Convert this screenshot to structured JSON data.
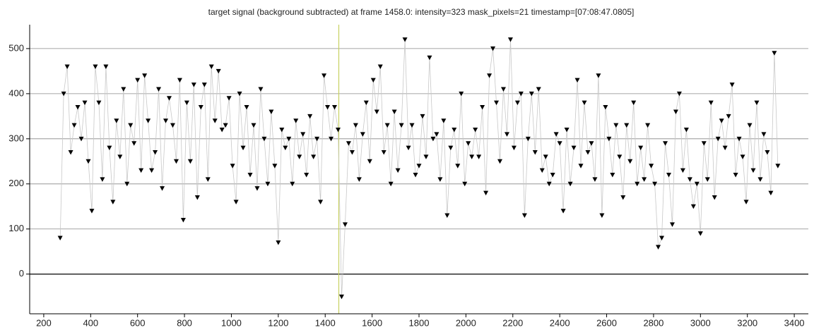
{
  "chart_data": {
    "type": "line",
    "title": "target signal (background subtracted) at frame 1458.0: intensity=323 mask_pixels=21 timestamp=[07:08:47.0805]",
    "x": [
      270,
      285,
      300,
      315,
      330,
      345,
      360,
      375,
      390,
      405,
      420,
      435,
      450,
      465,
      480,
      495,
      510,
      525,
      540,
      555,
      570,
      585,
      600,
      615,
      630,
      645,
      660,
      675,
      690,
      705,
      720,
      735,
      750,
      765,
      780,
      795,
      810,
      825,
      840,
      855,
      870,
      885,
      900,
      915,
      930,
      945,
      960,
      975,
      990,
      1005,
      1020,
      1035,
      1050,
      1065,
      1080,
      1095,
      1110,
      1125,
      1140,
      1155,
      1170,
      1185,
      1200,
      1215,
      1230,
      1245,
      1260,
      1275,
      1290,
      1305,
      1320,
      1335,
      1350,
      1365,
      1380,
      1395,
      1410,
      1425,
      1440,
      1455,
      1470,
      1485,
      1500,
      1515,
      1530,
      1545,
      1560,
      1575,
      1590,
      1605,
      1620,
      1635,
      1650,
      1665,
      1680,
      1695,
      1710,
      1725,
      1740,
      1755,
      1770,
      1785,
      1800,
      1815,
      1830,
      1845,
      1860,
      1875,
      1890,
      1905,
      1920,
      1935,
      1950,
      1965,
      1980,
      1995,
      2010,
      2025,
      2040,
      2055,
      2070,
      2085,
      2100,
      2115,
      2130,
      2145,
      2160,
      2175,
      2190,
      2205,
      2220,
      2235,
      2250,
      2265,
      2280,
      2295,
      2310,
      2325,
      2340,
      2355,
      2370,
      2385,
      2400,
      2415,
      2430,
      2445,
      2460,
      2475,
      2490,
      2505,
      2520,
      2535,
      2550,
      2565,
      2580,
      2595,
      2610,
      2625,
      2640,
      2655,
      2670,
      2685,
      2700,
      2715,
      2730,
      2745,
      2760,
      2775,
      2790,
      2805,
      2820,
      2835,
      2850,
      2865,
      2880,
      2895,
      2910,
      2925,
      2940,
      2955,
      2970,
      2985,
      3000,
      3015,
      3030,
      3045,
      3060,
      3075,
      3090,
      3105,
      3120,
      3135,
      3150,
      3165,
      3180,
      3195,
      3210,
      3225,
      3240,
      3255,
      3270,
      3285,
      3300,
      3315,
      3330
    ],
    "series": [
      {
        "color": "#000000",
        "line_color": "#c8c8c8",
        "values": [
          80,
          400,
          460,
          270,
          330,
          370,
          300,
          380,
          250,
          140,
          460,
          380,
          210,
          460,
          280,
          160,
          340,
          260,
          410,
          200,
          330,
          290,
          430,
          230,
          440,
          340,
          230,
          270,
          410,
          190,
          340,
          390,
          330,
          250,
          430,
          120,
          380,
          250,
          420,
          170,
          370,
          420,
          210,
          460,
          340,
          450,
          320,
          330,
          390,
          240,
          160,
          400,
          280,
          370,
          220,
          330,
          190,
          410,
          300,
          200,
          360,
          240,
          70,
          320,
          280,
          300,
          200,
          340,
          260,
          310,
          220,
          350,
          260,
          300,
          160,
          440,
          370,
          300,
          370,
          320,
          -50,
          110,
          290,
          270,
          330,
          210,
          310,
          380,
          250,
          430,
          360,
          460,
          270,
          330,
          200,
          360,
          230,
          330,
          520,
          280,
          330,
          220,
          240,
          350,
          260,
          480,
          300,
          310,
          210,
          340,
          130,
          280,
          320,
          240,
          400,
          200,
          290,
          260,
          320,
          260,
          370,
          180,
          440,
          500,
          380,
          250,
          410,
          310,
          520,
          280,
          380,
          400,
          130,
          300,
          400,
          270,
          410,
          230,
          260,
          200,
          220,
          310,
          290,
          140,
          320,
          200,
          280,
          430,
          240,
          380,
          270,
          290,
          210,
          440,
          130,
          370,
          300,
          220,
          330,
          260,
          170,
          330,
          250,
          380,
          200,
          280,
          210,
          330,
          240,
          200,
          60,
          80,
          290,
          220,
          110,
          360,
          400,
          230,
          320,
          210,
          150,
          200,
          90,
          290,
          210,
          380,
          170,
          300,
          340,
          280,
          350,
          420,
          220,
          300,
          260,
          160,
          330,
          230,
          380,
          210,
          310,
          270,
          180,
          490,
          240
        ]
      }
    ],
    "vline": 1458,
    "vline_color": "#c8d060",
    "xlim": [
      140,
      3460
    ],
    "ylim": [
      -88,
      553
    ],
    "xticks": [
      200,
      400,
      600,
      800,
      1000,
      1200,
      1400,
      1600,
      1800,
      2000,
      2200,
      2400,
      2600,
      2800,
      3000,
      3200,
      3400
    ],
    "yticks": [
      0,
      100,
      200,
      300,
      400,
      500
    ],
    "grid": true
  }
}
